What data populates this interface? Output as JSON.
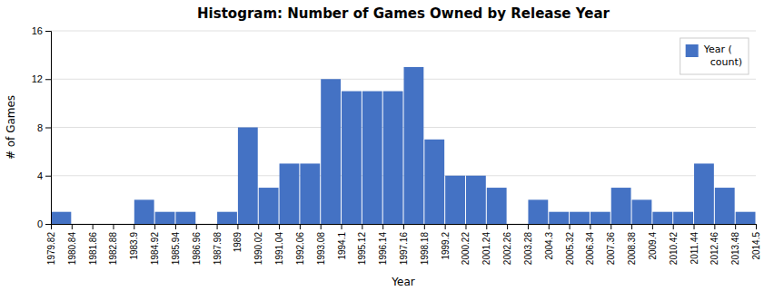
{
  "chart_data": {
    "type": "histogram",
    "title": "Histogram: Number of Games Owned by Release Year",
    "x_label": "Year",
    "y_label": "# of Games",
    "bins": [
      1979.82,
      1980.84,
      1981.86,
      1982.88,
      1983.9,
      1984.92,
      1985.94,
      1986.96,
      1987.98,
      1989,
      1990.02,
      1991.04,
      1992.06,
      1993.08,
      1994.1,
      1995.12,
      1996.14,
      1997.16,
      1998.18,
      1999.2,
      2000.22,
      2001.24,
      2002.26,
      2003.28,
      2004.3,
      2005.32,
      2006.34,
      2007.36,
      2008.38,
      2009.4,
      2010.42,
      2011.44,
      2012.46,
      2013.48,
      2014.5
    ],
    "series": [
      {
        "name": "Year (\n  count)",
        "color": "#4472C4",
        "values": [
          1,
          0,
          0,
          0,
          2,
          1,
          1,
          0,
          1,
          8,
          3,
          5,
          5,
          12,
          11,
          11,
          11,
          13,
          7,
          4,
          4,
          3,
          0,
          2,
          1,
          1,
          1,
          3,
          2,
          1,
          1,
          5,
          3,
          1
        ]
      }
    ],
    "xlim": [
      1979.82,
      2014.5
    ],
    "xticks": [
      1979.82,
      1980.84,
      1981.86,
      1982.88,
      1983.9,
      1984.92,
      1985.94,
      1986.96,
      1987.98,
      1989,
      1990.02,
      1991.04,
      1992.06,
      1993.08,
      1994.1,
      1995.12,
      1996.14,
      1997.16,
      1998.18,
      1999.2,
      2000.22,
      2001.24,
      2002.26,
      2003.28,
      2004.3,
      2005.32,
      2006.34,
      2007.36,
      2008.38,
      2009.4,
      2010.42,
      2011.44,
      2012.46,
      2013.48,
      2014.5
    ],
    "ylim": [
      0,
      16
    ],
    "yticks": [
      0,
      4,
      8,
      12,
      16
    ],
    "grid": true,
    "legend": "upper right"
  }
}
